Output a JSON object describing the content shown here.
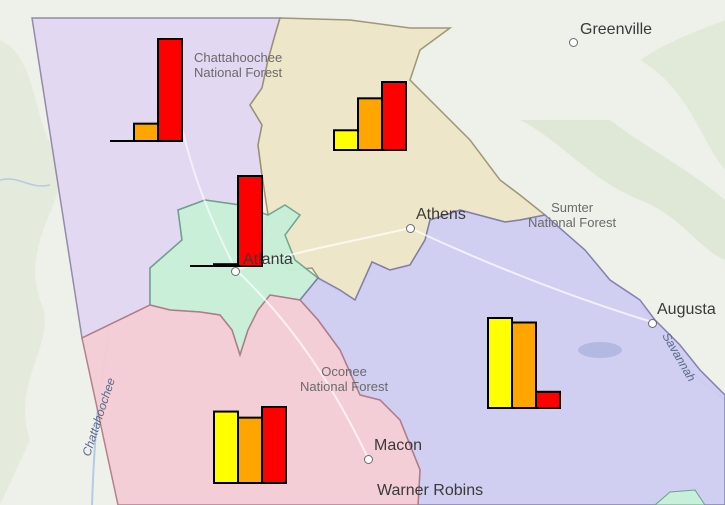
{
  "map": {
    "places": [
      {
        "name": "Greenville",
        "kind": "city"
      },
      {
        "name": "Athens",
        "kind": "city"
      },
      {
        "name": "Augusta",
        "kind": "city"
      },
      {
        "name": "Atlanta",
        "kind": "city"
      },
      {
        "name": "Macon",
        "kind": "city"
      },
      {
        "name": "Warner Robins",
        "kind": "city"
      }
    ],
    "forests": [
      {
        "line1": "Chattahoochee",
        "line2": "National Forest"
      },
      {
        "line1": "Sumter",
        "line2": "National Forest"
      },
      {
        "line1": "Oconee",
        "line2": "National Forest"
      }
    ],
    "rivers": [
      {
        "name": "Chattahoochee"
      },
      {
        "name": "Savannah"
      }
    ],
    "colors": {
      "background": "#eef1ea",
      "region_north": "#e3d7f2",
      "region_northeast": "#efe6c7",
      "region_atlanta": "#c8efd9",
      "region_east": "#cfcdf2",
      "region_south": "#f5cdd5",
      "bar_low": "#ffff00",
      "bar_mid": "#ffa500",
      "bar_high": "#ff0000"
    }
  },
  "chart_data": {
    "type": "bar",
    "description_scope": "small per-region bar charts (3 bars each: yellow, orange, red); values are relative heights on a 0-100 scale",
    "series_colors": [
      "#ffff00",
      "#ffa500",
      "#ff0000"
    ],
    "ylim": [
      0,
      100
    ],
    "charts": [
      {
        "region": "north",
        "values": [
          0,
          17,
          100
        ]
      },
      {
        "region": "northeast",
        "values": [
          29,
          76,
          100
        ]
      },
      {
        "region": "atlanta",
        "values": [
          0,
          2,
          100
        ]
      },
      {
        "region": "east",
        "values": [
          100,
          95,
          18
        ]
      },
      {
        "region": "south",
        "values": [
          94,
          86,
          100
        ]
      }
    ]
  }
}
